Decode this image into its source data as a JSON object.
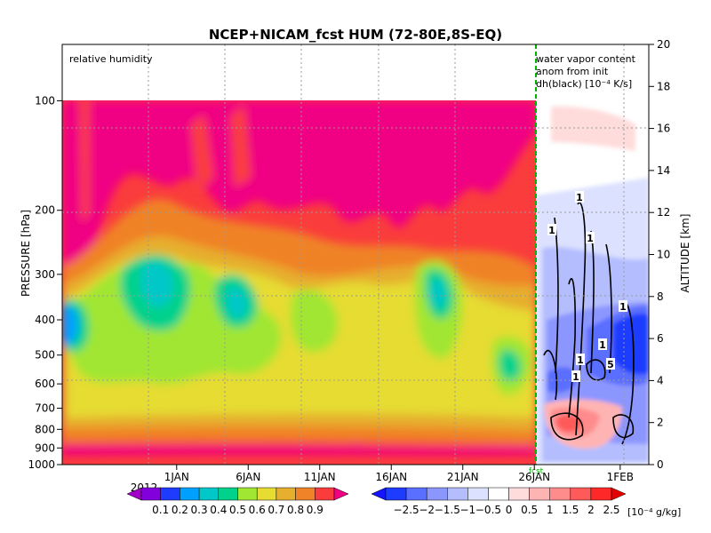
{
  "chart_data": {
    "type": "heatmap",
    "title": "NCEP+NICAM_fcst HUM (72-80E,8S-EQ)",
    "panels": {
      "left": {
        "label": "relative humidity"
      },
      "right": {
        "label_lines": [
          "water vapor content",
          "anom from init",
          "dh(black) [10⁻⁴ K/s]"
        ]
      }
    },
    "y_left": {
      "label": "PRESSURE [hPa]",
      "scale": "log",
      "range": [
        1000,
        70
      ],
      "ticks": [
        100,
        200,
        300,
        400,
        500,
        600,
        700,
        800,
        900,
        1000
      ],
      "tick_labels": [
        "100",
        "200",
        "300",
        "400",
        "500",
        "600",
        "700",
        "800",
        "900",
        "1000"
      ]
    },
    "y_right": {
      "label": "ALTITUDE [km]",
      "range": [
        0,
        20
      ],
      "ticks": [
        0,
        2,
        4,
        6,
        8,
        10,
        12,
        14,
        16,
        18,
        20
      ],
      "tick_labels": [
        "0",
        "2",
        "4",
        "6",
        "8",
        "10",
        "12",
        "14",
        "16",
        "18",
        "20"
      ]
    },
    "x": {
      "range": [
        "2011-12-24",
        "2012-02-03"
      ],
      "ticks": [
        "2012-01-01",
        "2012-01-06",
        "2012-01-11",
        "2012-01-16",
        "2012-01-21",
        "2012-01-26",
        "2012-02-01"
      ],
      "tick_labels": [
        "1JAN",
        "6JAN",
        "11JAN",
        "16JAN",
        "21JAN",
        "26JAN",
        "1FEB"
      ],
      "year_label": "2012",
      "grid": true
    },
    "forecast_start": {
      "date": "2012-01-26",
      "label": "fcst"
    },
    "contour_labels": [
      "1",
      "1",
      "1",
      "1",
      "1",
      "1",
      "5",
      "1"
    ],
    "colorbar_left": {
      "levels": [
        "0.1",
        "0.2",
        "0.3",
        "0.4",
        "0.5",
        "0.6",
        "0.7",
        "0.8",
        "0.9"
      ],
      "colors": [
        "#a000c8",
        "#8200dc",
        "#1e3cff",
        "#00a0ff",
        "#00c8c8",
        "#00d28c",
        "#a0e632",
        "#e6dc32",
        "#e6af2d",
        "#f08228",
        "#fa3c3c",
        "#f00082"
      ]
    },
    "colorbar_right": {
      "levels": [
        "−2.5",
        "−2",
        "−1.5",
        "−1",
        "−0.5",
        "0",
        "0.5",
        "1",
        "1.5",
        "2",
        "2.5"
      ],
      "unit": "[10⁻⁴ g/kg]",
      "colors": [
        "#1414ff",
        "#1e3cff",
        "#5a6eff",
        "#8c96ff",
        "#b4beff",
        "#dce1ff",
        "#ffffff",
        "#ffdcdc",
        "#ffb4b4",
        "#ff8c8c",
        "#ff5a5a",
        "#ff2828",
        "#e60000"
      ]
    }
  }
}
